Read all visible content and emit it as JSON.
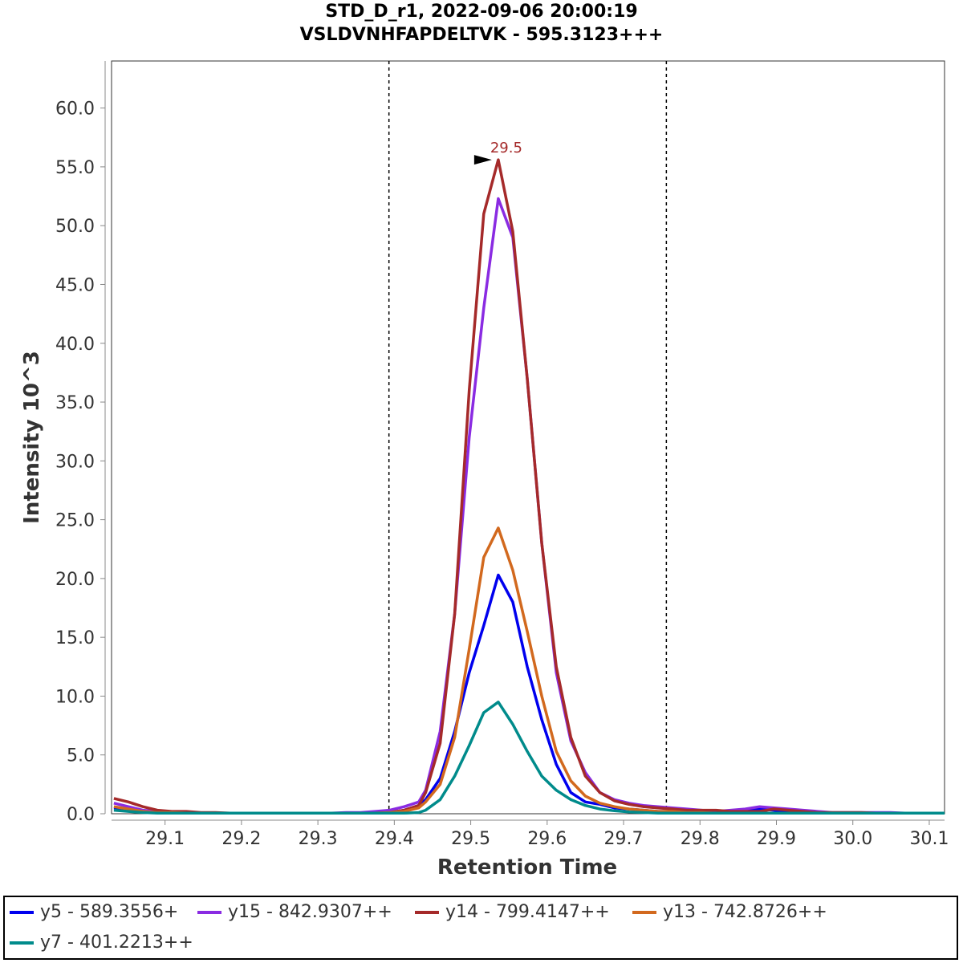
{
  "chart_data": {
    "type": "line",
    "title": "STD_D_r1, 2022-09-06 20:00:19",
    "subtitle": "VSLDVNHFAPDELTVK - 595.3123+++",
    "xlabel": "Retention Time",
    "ylabel": "Intensity 10^3",
    "xlim": [
      29.03,
      30.12
    ],
    "ylim": [
      0,
      64
    ],
    "xticks": [
      "29.1",
      "29.2",
      "29.3",
      "29.4",
      "29.5",
      "29.6",
      "29.7",
      "29.8",
      "29.9",
      "30.0",
      "30.1"
    ],
    "xtick_values": [
      29.1,
      29.2,
      29.3,
      29.4,
      29.5,
      29.6,
      29.7,
      29.8,
      29.9,
      30.0,
      30.1
    ],
    "yticks": [
      "0.0",
      "5.0",
      "10.0",
      "15.0",
      "20.0",
      "25.0",
      "30.0",
      "35.0",
      "40.0",
      "45.0",
      "50.0",
      "55.0",
      "60.0"
    ],
    "ytick_values": [
      0,
      5,
      10,
      15,
      20,
      25,
      30,
      35,
      40,
      45,
      50,
      55,
      60
    ],
    "boundaries": [
      29.393,
      29.756
    ],
    "peak_annotation": {
      "text": "29.5",
      "x": 29.536,
      "y": 55.6,
      "color": "#a52a2a"
    },
    "x": [
      29.033,
      29.052,
      29.071,
      29.09,
      29.109,
      29.128,
      29.147,
      29.166,
      29.185,
      29.204,
      29.223,
      29.242,
      29.261,
      29.28,
      29.299,
      29.318,
      29.337,
      29.356,
      29.375,
      29.394,
      29.413,
      29.432,
      29.441,
      29.46,
      29.479,
      29.498,
      29.517,
      29.536,
      29.555,
      29.574,
      29.593,
      29.612,
      29.631,
      29.65,
      29.669,
      29.688,
      29.707,
      29.726,
      29.745,
      29.764,
      29.783,
      29.802,
      29.821,
      29.84,
      29.859,
      29.878,
      29.897,
      29.916,
      29.935,
      29.954,
      29.973,
      29.992,
      30.011,
      30.03,
      30.049,
      30.068,
      30.087,
      30.106,
      30.12
    ],
    "series": [
      {
        "name": "y5 - 589.3556+",
        "color": "#0000ee",
        "values": [
          0.5,
          0.4,
          0.2,
          0.1,
          0.1,
          0.05,
          0.05,
          0.05,
          0.05,
          0.05,
          0.05,
          0.05,
          0.05,
          0.05,
          0.05,
          0.05,
          0.05,
          0.05,
          0.05,
          0.1,
          0.3,
          0.7,
          1.2,
          3.0,
          7.0,
          12.0,
          16.0,
          20.3,
          18.0,
          12.5,
          8.0,
          4.2,
          1.8,
          1.0,
          0.8,
          0.5,
          0.4,
          0.3,
          0.2,
          0.2,
          0.15,
          0.1,
          0.1,
          0.2,
          0.3,
          0.4,
          0.3,
          0.2,
          0.1,
          0.1,
          0.05,
          0.05,
          0.05,
          0.05,
          0.05,
          0.05,
          0.05,
          0.05,
          0.05
        ]
      },
      {
        "name": "y15 - 842.9307++",
        "color": "#8a2be2",
        "values": [
          0.9,
          0.6,
          0.3,
          0.2,
          0.1,
          0.1,
          0.05,
          0.05,
          0.05,
          0.05,
          0.05,
          0.05,
          0.05,
          0.05,
          0.05,
          0.05,
          0.1,
          0.1,
          0.2,
          0.3,
          0.6,
          1.0,
          2.0,
          7.0,
          17.0,
          32.0,
          43.0,
          52.3,
          49.0,
          37.0,
          23.0,
          12.0,
          6.2,
          3.5,
          1.8,
          1.2,
          0.9,
          0.7,
          0.6,
          0.5,
          0.4,
          0.3,
          0.2,
          0.3,
          0.4,
          0.6,
          0.5,
          0.4,
          0.3,
          0.2,
          0.1,
          0.1,
          0.1,
          0.1,
          0.1,
          0.05,
          0.05,
          0.05,
          0.05
        ]
      },
      {
        "name": "y14 - 799.4147++",
        "color": "#a52a2a",
        "values": [
          1.3,
          1.0,
          0.6,
          0.3,
          0.2,
          0.2,
          0.1,
          0.1,
          0.05,
          0.05,
          0.05,
          0.05,
          0.05,
          0.05,
          0.05,
          0.05,
          0.05,
          0.05,
          0.05,
          0.1,
          0.3,
          0.7,
          1.8,
          6.0,
          17.0,
          36.0,
          51.0,
          55.6,
          49.5,
          37.0,
          23.0,
          12.5,
          6.5,
          3.2,
          1.8,
          1.1,
          0.8,
          0.6,
          0.5,
          0.4,
          0.3,
          0.3,
          0.3,
          0.2,
          0.2,
          0.2,
          0.4,
          0.3,
          0.2,
          0.1,
          0.1,
          0.1,
          0.1,
          0.05,
          0.05,
          0.05,
          0.05,
          0.05,
          0.05
        ]
      },
      {
        "name": "y13 - 742.8726++",
        "color": "#d2691e",
        "values": [
          0.6,
          0.4,
          0.2,
          0.1,
          0.1,
          0.05,
          0.05,
          0.05,
          0.05,
          0.05,
          0.05,
          0.05,
          0.05,
          0.05,
          0.05,
          0.05,
          0.05,
          0.05,
          0.05,
          0.1,
          0.2,
          0.5,
          1.0,
          2.5,
          6.5,
          14.0,
          21.8,
          24.3,
          20.7,
          15.5,
          10.0,
          5.3,
          2.8,
          1.5,
          0.9,
          0.6,
          0.4,
          0.3,
          0.2,
          0.2,
          0.1,
          0.1,
          0.05,
          0.05,
          0.05,
          0.05,
          0.05,
          0.05,
          0.05,
          0.05,
          0.05,
          0.05,
          0.05,
          0.05,
          0.05,
          0.05,
          0.05,
          0.05,
          0.05
        ]
      },
      {
        "name": "y7 - 401.2213++",
        "color": "#008b8b",
        "values": [
          0.3,
          0.2,
          0.1,
          0.05,
          0.05,
          0.05,
          0.05,
          0.05,
          0.05,
          0.05,
          0.05,
          0.05,
          0.05,
          0.05,
          0.05,
          0.05,
          0.05,
          0.05,
          0.05,
          0.05,
          0.05,
          0.1,
          0.3,
          1.2,
          3.2,
          5.8,
          8.6,
          9.5,
          7.6,
          5.3,
          3.2,
          2.0,
          1.2,
          0.7,
          0.4,
          0.25,
          0.15,
          0.1,
          0.05,
          0.05,
          0.05,
          0.05,
          0.05,
          0.05,
          0.05,
          0.05,
          0.05,
          0.05,
          0.05,
          0.05,
          0.05,
          0.05,
          0.05,
          0.05,
          0.05,
          0.05,
          0.05,
          0.05,
          0.05
        ]
      }
    ]
  }
}
